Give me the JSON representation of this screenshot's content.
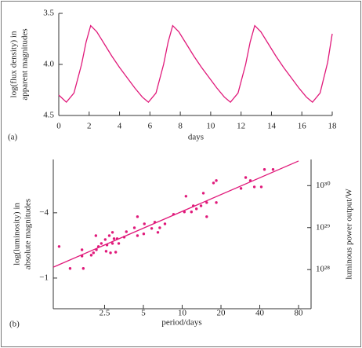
{
  "chart_data": [
    {
      "type": "line",
      "annotation": "(a)",
      "xlabel": "days",
      "ylabel": [
        "log(flux density) in",
        "apparent magnitudes"
      ],
      "color": "#e0197a",
      "x": [
        0,
        0.5,
        1.0,
        1.5,
        1.8,
        2.1,
        2.5,
        3,
        3.5,
        4,
        4.5,
        5,
        5.5,
        5.9,
        6.4,
        6.9,
        7.2,
        7.5,
        7.9,
        8.4,
        8.9,
        9.4,
        9.9,
        10.4,
        10.9,
        11.3,
        11.8,
        12.3,
        12.6,
        12.9,
        13.3,
        13.8,
        14.3,
        14.8,
        15.3,
        15.8,
        16.3,
        16.7,
        17.2,
        17.7,
        18
      ],
      "values": [
        4.3,
        4.37,
        4.28,
        4.0,
        3.78,
        3.62,
        3.68,
        3.8,
        3.92,
        4.03,
        4.13,
        4.23,
        4.32,
        4.37,
        4.28,
        4.0,
        3.78,
        3.62,
        3.68,
        3.8,
        3.92,
        4.03,
        4.13,
        4.23,
        4.32,
        4.37,
        4.28,
        4.0,
        3.78,
        3.62,
        3.68,
        3.8,
        3.92,
        4.03,
        4.13,
        4.23,
        4.32,
        4.37,
        4.28,
        3.98,
        3.7
      ],
      "xlim": [
        0,
        18
      ],
      "xticks": [
        0,
        2,
        4,
        6,
        8,
        10,
        12,
        14,
        16,
        18
      ],
      "ylim": [
        4.5,
        3.5
      ],
      "yticks": [
        3.5,
        {
          "value": 4,
          "label": "4.0"
        },
        4.5
      ]
    },
    {
      "type": "scatter",
      "annotation": "(b)",
      "xlabel": "period/days",
      "ylabel": [
        "log(luminosity) in",
        "absolute magnitudes"
      ],
      "y2label": "luminous power output/W",
      "color": "#e0197a",
      "x": [
        1.11,
        1.35,
        1.67,
        1.67,
        1.71,
        1.97,
        2.05,
        2.14,
        2.16,
        2.24,
        2.36,
        2.53,
        2.57,
        2.61,
        2.72,
        2.78,
        2.88,
        2.88,
        2.96,
        3.05,
        3.13,
        3.22,
        3.55,
        3.69,
        4.26,
        4.5,
        4.5,
        5.03,
        5.09,
        5.8,
        6.13,
        6.48,
        6.7,
        7.35,
        8.57,
        10.4,
        10.7,
        11.8,
        12.2,
        12.9,
        14.0,
        14.6,
        15.5,
        15.5,
        17.5,
        18.4,
        18.4,
        28.6,
        31.1,
        33.8,
        36.3,
        41.1,
        43.5,
        50.7
      ],
      "values": [
        -2.45,
        -1.44,
        -2.3,
        -2.01,
        -1.44,
        -2.05,
        -2.16,
        -2.95,
        -2.3,
        -2.45,
        -2.59,
        -2.77,
        -2.23,
        -2.52,
        -2.95,
        -2.16,
        -3.1,
        -2.59,
        -2.81,
        -2.19,
        -2.81,
        -2.59,
        -2.88,
        -3.13,
        -3.31,
        -3.82,
        -2.95,
        -3.03,
        -3.49,
        -3.28,
        -3.57,
        -3.1,
        -3.31,
        -3.49,
        -3.93,
        -4.04,
        -4.76,
        -4.04,
        -4.32,
        -4.18,
        -4.32,
        -4.9,
        -4.47,
        -3.82,
        -5.37,
        -5.48,
        -4.47,
        -5.12,
        -5.62,
        -5.48,
        -5.19,
        -5.19,
        -5.99,
        -5.99
      ],
      "fit": {
        "x": [
          1,
          80
        ],
        "values": [
          -1.5,
          -6.38
        ]
      },
      "xscale": "log",
      "xlim": [
        1,
        100
      ],
      "xticks": [
        2.5,
        5,
        10,
        20,
        40,
        80
      ],
      "ylim": [
        0.41,
        -6.45
      ],
      "yticks": [
        {
          "value": -4,
          "label": "−4"
        },
        {
          "value": -1,
          "label": "−1"
        }
      ],
      "y2scale": "log",
      "y2lim": [
        1.17e+27,
        4.2e+30
      ],
      "y2ticks": [
        {
          "value": 1e+28,
          "label": "10²⁸"
        },
        {
          "value": 1e+29,
          "label": "10²⁹"
        },
        {
          "value": 1e+30,
          "label": "10³⁰"
        }
      ]
    }
  ]
}
